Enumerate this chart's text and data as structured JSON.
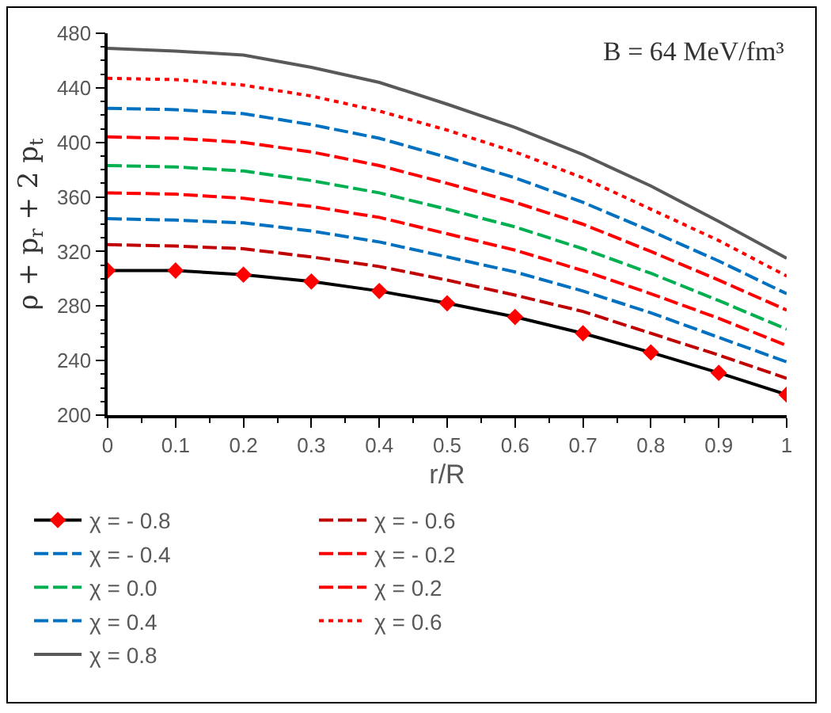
{
  "chart_data": {
    "type": "line",
    "xlabel": "r/R",
    "ylabel": "ρ + p$_{r}$ + 2 p$_{t}$",
    "annotations": [
      "B = 64 MeV/fm³"
    ],
    "x": [
      0,
      0.1,
      0.2,
      0.3,
      0.4,
      0.5,
      0.6,
      0.7,
      0.8,
      0.9,
      1
    ],
    "xlim": [
      0,
      1
    ],
    "xticks": [
      0,
      0.1,
      0.2,
      0.3,
      0.4,
      0.5,
      0.6,
      0.7,
      0.8,
      0.9,
      1
    ],
    "ylim": [
      200,
      480
    ],
    "yticks": [
      200,
      240,
      280,
      320,
      360,
      400,
      440,
      480
    ],
    "grid": false,
    "legend": "bottom",
    "series": [
      {
        "name": "χ = - 0.8",
        "color": "#000000",
        "line_style": "solid",
        "marker": "diamond",
        "colors": [
          "#ff0000",
          "#ff0000",
          "#ff0000",
          "#ff0000",
          "#ff0000",
          "#ff0000",
          "#ff0000",
          "#ff0000",
          "#ff0000",
          "#ff0000",
          "#ff0000"
        ],
        "values": [
          306,
          306,
          303,
          298,
          291,
          282,
          272,
          260,
          246,
          231,
          215
        ]
      },
      {
        "name": "χ = - 0.6",
        "color": "#c00000",
        "line_style": "dashed",
        "values": [
          325,
          324,
          322,
          316,
          309,
          299,
          288,
          276,
          260,
          244,
          227
        ]
      },
      {
        "name": "χ = - 0.4",
        "color": "#0070c0",
        "line_style": "dashed",
        "values": [
          344,
          343,
          341,
          335,
          327,
          316,
          305,
          291,
          275,
          257,
          239
        ]
      },
      {
        "name": "χ = - 0.2",
        "color": "#ff0000",
        "line_style": "dashed",
        "values": [
          363,
          362,
          359,
          353,
          345,
          333,
          321,
          306,
          289,
          271,
          251
        ]
      },
      {
        "name": "χ = 0.0",
        "color": "#00b050",
        "line_style": "dashed",
        "values": [
          383,
          382,
          379,
          372,
          363,
          351,
          338,
          322,
          304,
          284,
          263
        ]
      },
      {
        "name": "χ = 0.2",
        "color": "#ff0000",
        "line_style": "dashed",
        "values": [
          404,
          403,
          400,
          393,
          383,
          370,
          356,
          340,
          320,
          299,
          277
        ]
      },
      {
        "name": "χ = 0.4",
        "color": "#0070c0",
        "line_style": "dashed",
        "values": [
          425,
          424,
          421,
          413,
          403,
          389,
          374,
          356,
          335,
          313,
          289
        ]
      },
      {
        "name": "χ = 0.6",
        "color": "#ff0000",
        "line_style": "dotted",
        "values": [
          447,
          446,
          442,
          434,
          423,
          409,
          393,
          374,
          351,
          328,
          302
        ]
      },
      {
        "name": "χ = 0.8",
        "color": "#595959",
        "line_style": "solid",
        "values": [
          469,
          467,
          464,
          455,
          444,
          428,
          411,
          391,
          368,
          342,
          315
        ]
      }
    ]
  }
}
